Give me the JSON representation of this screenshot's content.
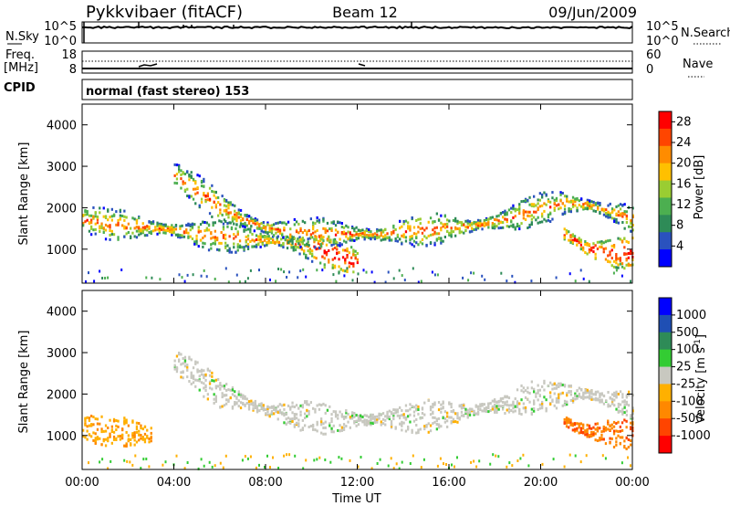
{
  "header": {
    "station": "Pykkvibaer (fitACF)",
    "beam": "Beam 12",
    "date": "09/Jun/2009"
  },
  "small_panels": {
    "nsky_label": "N.Sky",
    "nsearch_label": "N.Search",
    "noise_ticks": [
      "10^5",
      "10^0"
    ],
    "freq_label_line1": "Freq.",
    "freq_label_line2": "[MHz]",
    "freq_ticks": [
      "18",
      "8"
    ],
    "nave_label": "Nave",
    "nave_ticks": [
      "60",
      "0"
    ],
    "cpid_label": "CPID",
    "cpid_text": "normal (fast stereo) 153"
  },
  "colors": {
    "power": [
      "#0000ff",
      "#2a52be",
      "#2e8b57",
      "#4caf50",
      "#9acd32",
      "#ffc000",
      "#ff8c00",
      "#ff4500",
      "#ff0000"
    ],
    "velocity": [
      "#0000ff",
      "#1f4fb4",
      "#2e8b57",
      "#33cc33",
      "#c8c8c0",
      "#ffb000",
      "#ff8800",
      "#ff4400",
      "#ff0000"
    ]
  },
  "chart_data": [
    {
      "type": "heatmap",
      "title": "",
      "xlabel": "",
      "ylabel": "Slant Range [km]",
      "xlim": [
        "00:00",
        "00:00"
      ],
      "ylim": [
        180,
        4500
      ],
      "x_ticks": [
        "00:00",
        "04:00",
        "08:00",
        "12:00",
        "16:00",
        "20:00",
        "00:00"
      ],
      "y_ticks": [
        "1000",
        "2000",
        "3000",
        "4000"
      ],
      "colorbar": {
        "label": "Power [dB]",
        "ticks": [
          "4",
          "8",
          "12",
          "16",
          "20",
          "24",
          "28"
        ],
        "range": [
          0,
          30
        ]
      },
      "echo_bands": [
        {
          "t": [
            0,
            0.5,
            1,
            2,
            3,
            4,
            5,
            6,
            7,
            8,
            9,
            10,
            11,
            12
          ],
          "range": [
            1700,
            1650,
            1600,
            1550,
            1500,
            1450,
            1350,
            1300,
            1250,
            1200,
            1150,
            1000,
            850,
            650
          ]
        },
        {
          "t": [
            4,
            5,
            6,
            7,
            8,
            9,
            10,
            11,
            12,
            13,
            14,
            15,
            16,
            17,
            18,
            19,
            20,
            21,
            22,
            23,
            24
          ],
          "range": [
            2800,
            2400,
            2000,
            1700,
            1500,
            1400,
            1350,
            1350,
            1350,
            1350,
            1400,
            1450,
            1500,
            1550,
            1650,
            1800,
            1950,
            2100,
            2050,
            1900,
            1700
          ]
        },
        {
          "t": [
            21,
            22,
            23,
            24
          ],
          "range": [
            1350,
            1000,
            900,
            900
          ]
        }
      ]
    },
    {
      "type": "heatmap",
      "title": "",
      "xlabel": "Time UT",
      "ylabel": "Slant Range [km]",
      "xlim": [
        "00:00",
        "00:00"
      ],
      "ylim": [
        180,
        4500
      ],
      "x_ticks": [
        "00:00",
        "04:00",
        "08:00",
        "12:00",
        "16:00",
        "20:00",
        "00:00"
      ],
      "y_ticks": [
        "1000",
        "2000",
        "3000",
        "4000"
      ],
      "colorbar": {
        "label": "Velocity [m s",
        "label_superscript": "-1",
        "label_end": "]",
        "ticks": [
          "1000",
          "500",
          "100",
          "25",
          "-25",
          "-100",
          "-500",
          "-1000"
        ]
      },
      "echo_bands": [
        {
          "t": [
            0,
            0.5,
            1,
            2,
            3
          ],
          "range": [
            1200,
            1150,
            1100,
            1050,
            1000
          ],
          "velocity": -300
        },
        {
          "t": [
            4,
            6,
            8,
            10,
            12,
            14,
            16,
            18,
            20,
            22,
            24
          ],
          "range": [
            2800,
            2000,
            1600,
            1400,
            1350,
            1400,
            1500,
            1700,
            1950,
            2000,
            1700
          ],
          "velocity": 0
        },
        {
          "t": [
            21,
            22,
            23,
            24
          ],
          "range": [
            1300,
            1100,
            1050,
            1000
          ],
          "velocity": -450
        }
      ]
    }
  ]
}
